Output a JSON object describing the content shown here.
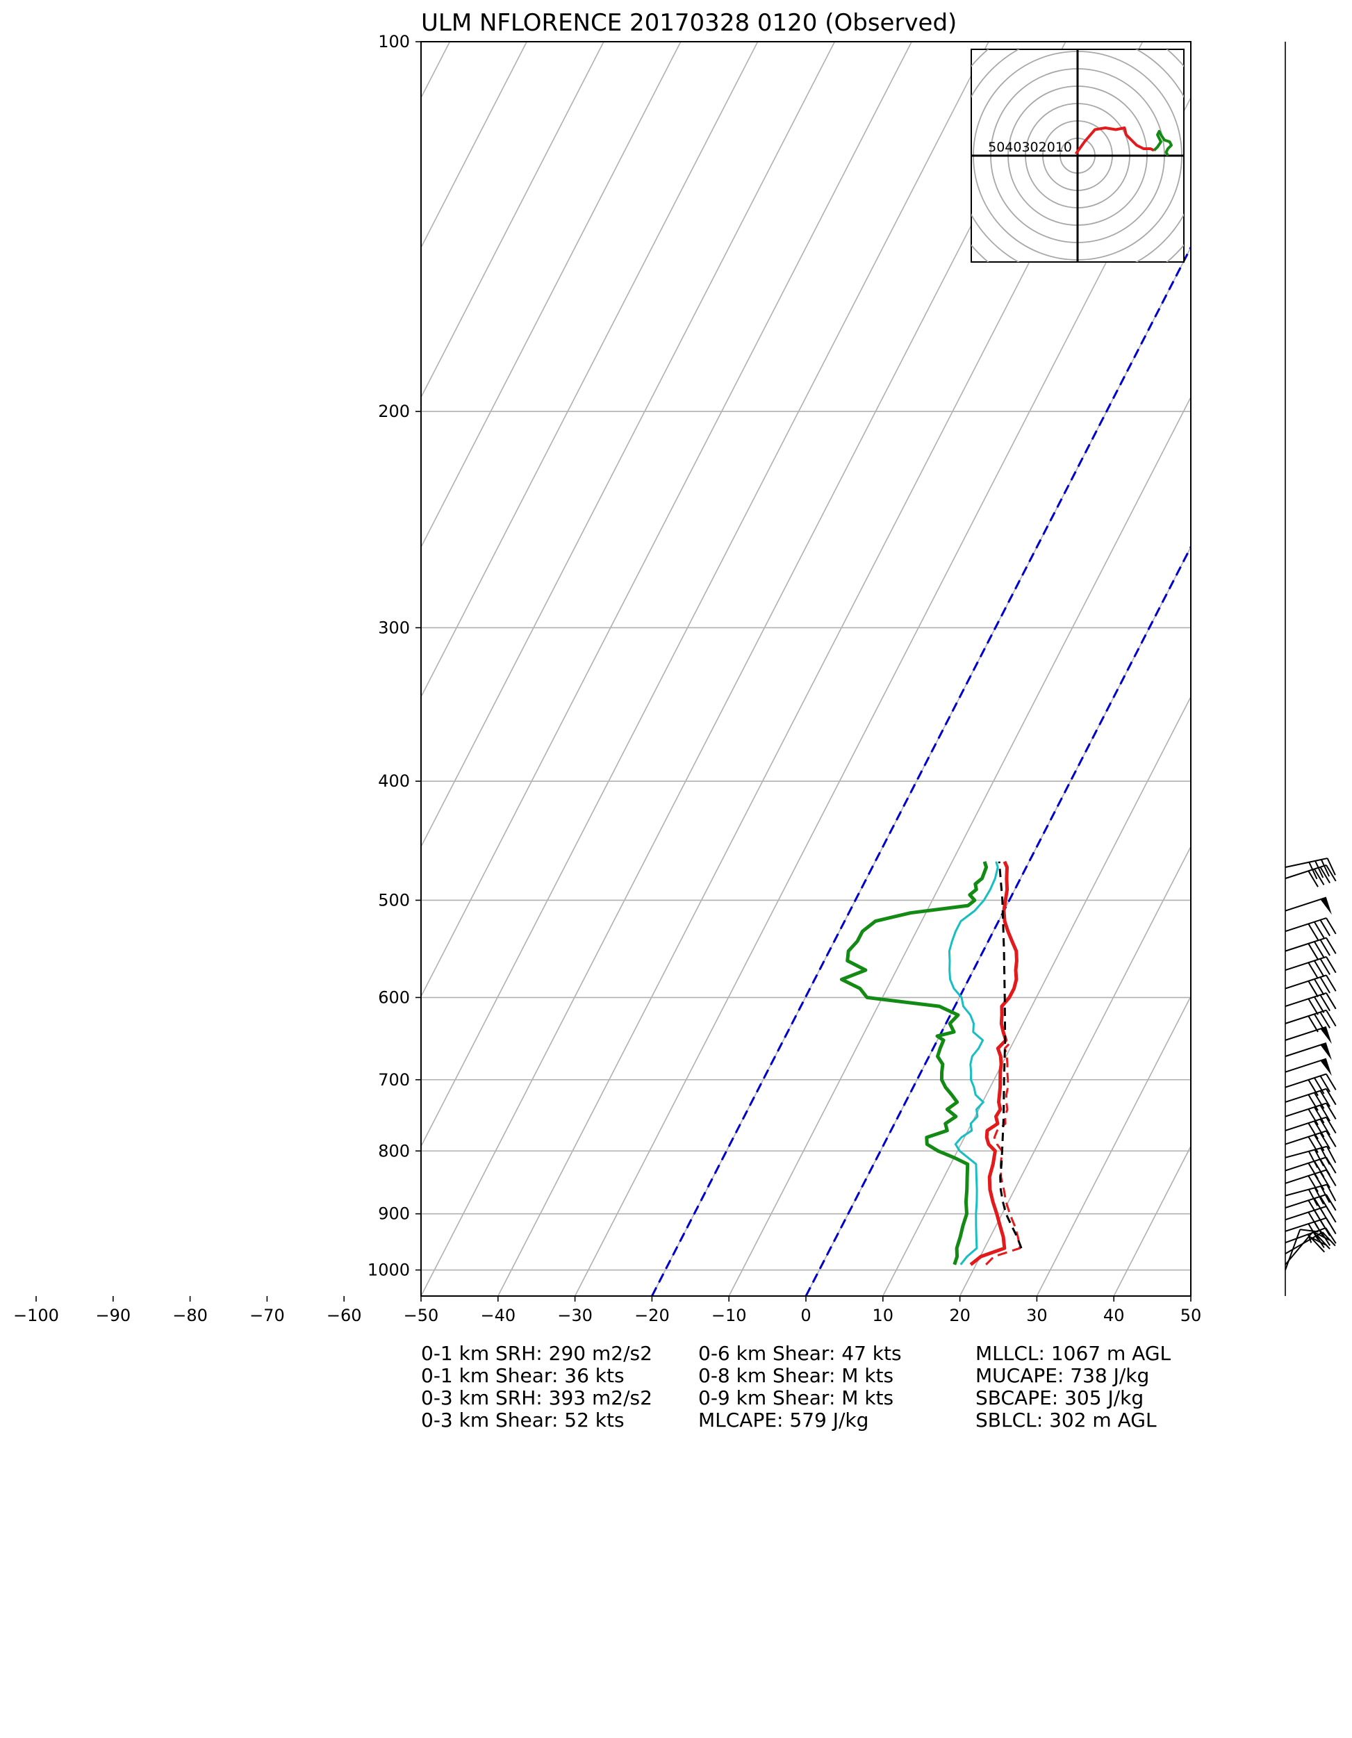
{
  "chart_data": {
    "type": "skew-t",
    "title": "ULM NFLORENCE 20170328 0120   (Observed)",
    "x_ticks": [
      -100,
      -90,
      -80,
      -70,
      -60,
      -50,
      -40,
      -30,
      -20,
      -10,
      0,
      10,
      20,
      30,
      40,
      50
    ],
    "xlim": [
      -50,
      50
    ],
    "y_ticks": [
      100,
      200,
      300,
      400,
      500,
      600,
      700,
      800,
      900,
      1000
    ],
    "ylim": [
      1050,
      100
    ],
    "y_scale": "log",
    "grid": true,
    "skew_deg_per_decade": 82,
    "series": [
      {
        "key": "temperature",
        "color": "#e31a1c",
        "style": "solid",
        "points": [
          [
            990,
            19.3
          ],
          [
            975,
            20.1
          ],
          [
            960,
            22.6
          ],
          [
            940,
            21.7
          ],
          [
            920,
            20.5
          ],
          [
            900,
            19.3
          ],
          [
            880,
            18.0
          ],
          [
            860,
            16.8
          ],
          [
            840,
            15.9
          ],
          [
            820,
            15.5
          ],
          [
            800,
            14.9
          ],
          [
            790,
            13.6
          ],
          [
            780,
            12.9
          ],
          [
            770,
            12.5
          ],
          [
            760,
            13.4
          ],
          [
            750,
            12.7
          ],
          [
            740,
            12.8
          ],
          [
            730,
            12.1
          ],
          [
            720,
            11.7
          ],
          [
            710,
            11.3
          ],
          [
            700,
            10.8
          ],
          [
            690,
            10.3
          ],
          [
            680,
            9.9
          ],
          [
            670,
            9.3
          ],
          [
            660,
            8.4
          ],
          [
            650,
            8.9
          ],
          [
            640,
            8.0
          ],
          [
            630,
            7.2
          ],
          [
            620,
            6.7
          ],
          [
            610,
            6.1
          ],
          [
            600,
            6.5
          ],
          [
            590,
            6.5
          ],
          [
            580,
            6.2
          ],
          [
            570,
            5.5
          ],
          [
            560,
            5.0
          ],
          [
            550,
            4.3
          ],
          [
            540,
            3.1
          ],
          [
            530,
            1.9
          ],
          [
            520,
            0.8
          ],
          [
            510,
            0.0
          ],
          [
            500,
            -0.5
          ],
          [
            490,
            -1.0
          ],
          [
            480,
            -1.8
          ],
          [
            470,
            -2.5
          ],
          [
            465,
            -3.2
          ]
        ]
      },
      {
        "key": "dewpoint",
        "color": "#138a13",
        "style": "solid",
        "points": [
          [
            990,
            17.2
          ],
          [
            975,
            17.0
          ],
          [
            960,
            16.4
          ],
          [
            940,
            16.1
          ],
          [
            920,
            15.7
          ],
          [
            900,
            15.4
          ],
          [
            880,
            14.5
          ],
          [
            860,
            13.8
          ],
          [
            840,
            13.0
          ],
          [
            820,
            12.2
          ],
          [
            810,
            10.0
          ],
          [
            800,
            7.5
          ],
          [
            790,
            5.6
          ],
          [
            780,
            5.1
          ],
          [
            770,
            7.3
          ],
          [
            760,
            6.6
          ],
          [
            750,
            7.5
          ],
          [
            740,
            5.9
          ],
          [
            730,
            6.7
          ],
          [
            720,
            5.5
          ],
          [
            710,
            4.2
          ],
          [
            700,
            3.2
          ],
          [
            690,
            2.7
          ],
          [
            680,
            2.3
          ],
          [
            670,
            1.1
          ],
          [
            660,
            0.9
          ],
          [
            650,
            0.8
          ],
          [
            645,
            -0.3
          ],
          [
            640,
            1.6
          ],
          [
            630,
            0.5
          ],
          [
            620,
            1.0
          ],
          [
            610,
            -2.0
          ],
          [
            600,
            -12.0
          ],
          [
            590,
            -13.5
          ],
          [
            580,
            -16.5
          ],
          [
            570,
            -14.0
          ],
          [
            560,
            -17.0
          ],
          [
            550,
            -17.5
          ],
          [
            540,
            -17.0
          ],
          [
            530,
            -17.0
          ],
          [
            520,
            -16.0
          ],
          [
            512,
            -12.0
          ],
          [
            505,
            -5.0
          ],
          [
            500,
            -4.5
          ],
          [
            495,
            -5.5
          ],
          [
            490,
            -5.0
          ],
          [
            485,
            -5.5
          ],
          [
            480,
            -5.0
          ],
          [
            470,
            -5.2
          ],
          [
            465,
            -5.8
          ]
        ]
      },
      {
        "key": "wetbulb",
        "color": "#17bec3",
        "style": "solid",
        "points": [
          [
            990,
            18.0
          ],
          [
            975,
            18.3
          ],
          [
            960,
            19.0
          ],
          [
            940,
            18.2
          ],
          [
            920,
            17.4
          ],
          [
            900,
            16.6
          ],
          [
            880,
            15.9
          ],
          [
            860,
            15.1
          ],
          [
            840,
            14.2
          ],
          [
            820,
            13.3
          ],
          [
            800,
            10.3
          ],
          [
            790,
            9.3
          ],
          [
            780,
            9.6
          ],
          [
            770,
            10.5
          ],
          [
            760,
            9.9
          ],
          [
            750,
            10.3
          ],
          [
            740,
            9.7
          ],
          [
            730,
            10.1
          ],
          [
            720,
            8.6
          ],
          [
            710,
            7.9
          ],
          [
            700,
            7.0
          ],
          [
            690,
            6.5
          ],
          [
            680,
            5.9
          ],
          [
            670,
            5.6
          ],
          [
            660,
            5.9
          ],
          [
            650,
            5.9
          ],
          [
            640,
            4.1
          ],
          [
            630,
            3.6
          ],
          [
            620,
            2.6
          ],
          [
            610,
            1.1
          ],
          [
            600,
            0.3
          ],
          [
            590,
            -1.3
          ],
          [
            580,
            -2.4
          ],
          [
            570,
            -3.1
          ],
          [
            560,
            -3.7
          ],
          [
            550,
            -4.4
          ],
          [
            540,
            -4.7
          ],
          [
            530,
            -4.9
          ],
          [
            520,
            -4.9
          ],
          [
            510,
            -3.8
          ],
          [
            500,
            -3.3
          ],
          [
            490,
            -3.2
          ],
          [
            480,
            -3.3
          ],
          [
            470,
            -3.7
          ],
          [
            465,
            -4.3
          ]
        ]
      },
      {
        "key": "virtual-temperature",
        "color": "#e31a1c",
        "style": "dashed",
        "points": [
          [
            990,
            21.3
          ],
          [
            975,
            21.8
          ],
          [
            960,
            24.6
          ],
          [
            940,
            23.6
          ],
          [
            920,
            22.4
          ],
          [
            900,
            21.0
          ],
          [
            880,
            19.7
          ],
          [
            860,
            18.6
          ],
          [
            840,
            17.4
          ],
          [
            820,
            16.5
          ],
          [
            800,
            15.8
          ],
          [
            790,
            14.7
          ],
          [
            780,
            13.9
          ],
          [
            770,
            13.8
          ],
          [
            760,
            14.4
          ],
          [
            750,
            13.9
          ],
          [
            740,
            13.7
          ],
          [
            730,
            13.1
          ],
          [
            720,
            12.6
          ],
          [
            710,
            12.3
          ],
          [
            700,
            11.8
          ],
          [
            690,
            11.2
          ],
          [
            680,
            10.7
          ],
          [
            670,
            10.1
          ],
          [
            660,
            9.3
          ],
          [
            650,
            9.8
          ]
        ]
      },
      {
        "key": "parcel",
        "color": "#000000",
        "style": "dashed",
        "points": [
          [
            960,
            24.8
          ],
          [
            940,
            23.5
          ],
          [
            920,
            22.0
          ],
          [
            900,
            20.5
          ],
          [
            880,
            19.3
          ],
          [
            860,
            18.2
          ],
          [
            840,
            17.3
          ],
          [
            820,
            16.6
          ],
          [
            800,
            15.8
          ],
          [
            750,
            13.7
          ],
          [
            700,
            11.3
          ],
          [
            650,
            8.8
          ],
          [
            600,
            5.9
          ],
          [
            550,
            2.7
          ],
          [
            500,
            -0.9
          ],
          [
            465,
            -3.9
          ]
        ]
      }
    ],
    "dry_adiabat_guides": [
      {
        "points": [
          [
            1050,
            -20
          ],
          [
            100,
            -20
          ]
        ],
        "color": "#0000cc"
      },
      {
        "points": [
          [
            1050,
            0
          ],
          [
            100,
            0
          ]
        ],
        "color": "#0000cc"
      }
    ],
    "wind_barbs": [
      {
        "p": 1000,
        "speed_kt": 10,
        "dir_deg": 200
      },
      {
        "p": 990,
        "speed_kt": 20,
        "dir_deg": 220
      },
      {
        "p": 970,
        "speed_kt": 30,
        "dir_deg": 240
      },
      {
        "p": 950,
        "speed_kt": 35,
        "dir_deg": 250
      },
      {
        "p": 930,
        "speed_kt": 40,
        "dir_deg": 252
      },
      {
        "p": 910,
        "speed_kt": 40,
        "dir_deg": 252
      },
      {
        "p": 890,
        "speed_kt": 40,
        "dir_deg": 252
      },
      {
        "p": 870,
        "speed_kt": 40,
        "dir_deg": 255
      },
      {
        "p": 850,
        "speed_kt": 40,
        "dir_deg": 252
      },
      {
        "p": 830,
        "speed_kt": 40,
        "dir_deg": 252
      },
      {
        "p": 810,
        "speed_kt": 40,
        "dir_deg": 255
      },
      {
        "p": 790,
        "speed_kt": 40,
        "dir_deg": 252
      },
      {
        "p": 770,
        "speed_kt": 40,
        "dir_deg": 252
      },
      {
        "p": 750,
        "speed_kt": 40,
        "dir_deg": 252
      },
      {
        "p": 730,
        "speed_kt": 40,
        "dir_deg": 252
      },
      {
        "p": 710,
        "speed_kt": 40,
        "dir_deg": 252
      },
      {
        "p": 690,
        "speed_kt": 50,
        "dir_deg": 252
      },
      {
        "p": 670,
        "speed_kt": 50,
        "dir_deg": 252
      },
      {
        "p": 650,
        "speed_kt": 50,
        "dir_deg": 252
      },
      {
        "p": 630,
        "speed_kt": 40,
        "dir_deg": 252
      },
      {
        "p": 610,
        "speed_kt": 40,
        "dir_deg": 252
      },
      {
        "p": 590,
        "speed_kt": 40,
        "dir_deg": 252
      },
      {
        "p": 570,
        "speed_kt": 40,
        "dir_deg": 252
      },
      {
        "p": 550,
        "speed_kt": 40,
        "dir_deg": 252
      },
      {
        "p": 530,
        "speed_kt": 40,
        "dir_deg": 252
      },
      {
        "p": 510,
        "speed_kt": 50,
        "dir_deg": 252
      },
      {
        "p": 480,
        "speed_kt": 40,
        "dir_deg": 252
      },
      {
        "p": 470,
        "speed_kt": 40,
        "dir_deg": 258
      }
    ],
    "hodograph": {
      "ring_labels": [
        "50",
        "40",
        "30",
        "20",
        "10"
      ],
      "ring_step": 10,
      "max": 60,
      "segments": [
        {
          "color": "#e31a1c",
          "points": [
            [
              -1,
              1
            ],
            [
              4,
              8
            ],
            [
              10,
              15
            ],
            [
              16,
              16
            ],
            [
              22,
              15
            ],
            [
              27,
              16
            ],
            [
              28,
              12
            ],
            [
              32,
              8
            ],
            [
              34,
              6
            ],
            [
              38,
              4
            ],
            [
              42,
              4
            ],
            [
              44,
              3
            ]
          ]
        },
        {
          "color": "#138a13",
          "points": [
            [
              44,
              3
            ],
            [
              46,
              5
            ],
            [
              48,
              8
            ],
            [
              46,
              12
            ],
            [
              47,
              14
            ],
            [
              48,
              12
            ],
            [
              50,
              9
            ],
            [
              53,
              8
            ],
            [
              54,
              6
            ],
            [
              52,
              4
            ],
            [
              51,
              2
            ],
            [
              52,
              0
            ]
          ]
        }
      ]
    },
    "annotations": [
      [
        "0-1 km SRH: 290 m2/s2",
        "0-1 km Shear: 36 kts",
        "0-3 km SRH: 393 m2/s2",
        "0-3 km Shear: 52 kts"
      ],
      [
        "0-6 km Shear: 47 kts",
        "0-8 km Shear: M kts",
        "0-9 km Shear: M kts",
        "MLCAPE: 579 J/kg"
      ],
      [
        "MLLCL: 1067 m AGL",
        "MUCAPE: 738 J/kg",
        "SBCAPE: 305 J/kg",
        "SBLCL: 302 m AGL"
      ]
    ]
  }
}
